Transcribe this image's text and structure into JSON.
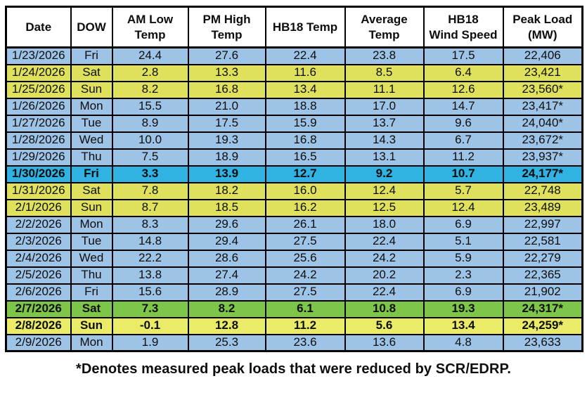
{
  "chart_data": {
    "type": "table",
    "title": "",
    "columns": [
      {
        "key": "date",
        "label": "Date",
        "width": 92
      },
      {
        "key": "dow",
        "label": "DOW",
        "width": 59
      },
      {
        "key": "am_low",
        "label": "AM Low\nTemp",
        "width": 108
      },
      {
        "key": "pm_high",
        "label": "PM High\nTemp",
        "width": 110
      },
      {
        "key": "hb18_temp",
        "label": "HB18 Temp",
        "width": 113
      },
      {
        "key": "avg_temp",
        "label": "Average\nTemp",
        "width": 112
      },
      {
        "key": "hb18_wind",
        "label": "HB18\nWind Speed",
        "width": 113
      },
      {
        "key": "peak_load",
        "label": "Peak Load\n(MW)",
        "width": 113
      }
    ],
    "rows": [
      {
        "date": "1/23/2026",
        "dow": "Fri",
        "am_low": "24.4",
        "pm_high": "27.6",
        "hb18_temp": "22.4",
        "avg_temp": "23.8",
        "hb18_wind": "17.5",
        "peak_load": "22,406",
        "style": "weekday",
        "bold": false
      },
      {
        "date": "1/24/2026",
        "dow": "Sat",
        "am_low": "2.8",
        "pm_high": "13.3",
        "hb18_temp": "11.6",
        "avg_temp": "8.5",
        "hb18_wind": "6.4",
        "peak_load": "23,421",
        "style": "weekend",
        "bold": false
      },
      {
        "date": "1/25/2026",
        "dow": "Sun",
        "am_low": "8.2",
        "pm_high": "16.8",
        "hb18_temp": "13.4",
        "avg_temp": "11.1",
        "hb18_wind": "12.6",
        "peak_load": "23,560*",
        "style": "weekend",
        "bold": false
      },
      {
        "date": "1/26/2026",
        "dow": "Mon",
        "am_low": "15.5",
        "pm_high": "21.0",
        "hb18_temp": "18.8",
        "avg_temp": "17.0",
        "hb18_wind": "14.7",
        "peak_load": "23,417*",
        "style": "weekday",
        "bold": false
      },
      {
        "date": "1/27/2026",
        "dow": "Tue",
        "am_low": "8.9",
        "pm_high": "17.5",
        "hb18_temp": "15.9",
        "avg_temp": "13.7",
        "hb18_wind": "9.6",
        "peak_load": "24,040*",
        "style": "weekday",
        "bold": false
      },
      {
        "date": "1/28/2026",
        "dow": "Wed",
        "am_low": "10.0",
        "pm_high": "19.3",
        "hb18_temp": "16.8",
        "avg_temp": "14.3",
        "hb18_wind": "6.7",
        "peak_load": "23,672*",
        "style": "weekday",
        "bold": false
      },
      {
        "date": "1/29/2026",
        "dow": "Thu",
        "am_low": "7.5",
        "pm_high": "18.9",
        "hb18_temp": "16.5",
        "avg_temp": "13.1",
        "hb18_wind": "11.2",
        "peak_load": "23,937*",
        "style": "weekday",
        "bold": false
      },
      {
        "date": "1/30/2026",
        "dow": "Fri",
        "am_low": "3.3",
        "pm_high": "13.9",
        "hb18_temp": "12.7",
        "avg_temp": "9.2",
        "hb18_wind": "10.7",
        "peak_load": "24,177*",
        "style": "peak_cyan",
        "bold": true
      },
      {
        "date": "1/31/2026",
        "dow": "Sat",
        "am_low": "7.8",
        "pm_high": "18.2",
        "hb18_temp": "16.0",
        "avg_temp": "12.4",
        "hb18_wind": "5.7",
        "peak_load": "22,748",
        "style": "weekend",
        "bold": false
      },
      {
        "date": "2/1/2026",
        "dow": "Sun",
        "am_low": "8.7",
        "pm_high": "18.5",
        "hb18_temp": "16.2",
        "avg_temp": "12.5",
        "hb18_wind": "12.4",
        "peak_load": "23,489",
        "style": "weekend",
        "bold": false
      },
      {
        "date": "2/2/2026",
        "dow": "Mon",
        "am_low": "8.3",
        "pm_high": "29.6",
        "hb18_temp": "26.1",
        "avg_temp": "18.0",
        "hb18_wind": "6.9",
        "peak_load": "22,997",
        "style": "weekday",
        "bold": false
      },
      {
        "date": "2/3/2026",
        "dow": "Tue",
        "am_low": "14.8",
        "pm_high": "29.4",
        "hb18_temp": "27.5",
        "avg_temp": "22.4",
        "hb18_wind": "5.1",
        "peak_load": "22,581",
        "style": "weekday",
        "bold": false
      },
      {
        "date": "2/4/2026",
        "dow": "Wed",
        "am_low": "22.2",
        "pm_high": "28.6",
        "hb18_temp": "25.6",
        "avg_temp": "24.2",
        "hb18_wind": "5.9",
        "peak_load": "22,279",
        "style": "weekday",
        "bold": false
      },
      {
        "date": "2/5/2026",
        "dow": "Thu",
        "am_low": "13.8",
        "pm_high": "27.4",
        "hb18_temp": "24.2",
        "avg_temp": "20.2",
        "hb18_wind": "2.3",
        "peak_load": "22,365",
        "style": "weekday",
        "bold": false
      },
      {
        "date": "2/6/2026",
        "dow": "Fri",
        "am_low": "15.6",
        "pm_high": "28.9",
        "hb18_temp": "27.5",
        "avg_temp": "22.4",
        "hb18_wind": "6.9",
        "peak_load": "21,902",
        "style": "weekday",
        "bold": false
      },
      {
        "date": "2/7/2026",
        "dow": "Sat",
        "am_low": "7.3",
        "pm_high": "8.2",
        "hb18_temp": "6.1",
        "avg_temp": "10.8",
        "hb18_wind": "19.3",
        "peak_load": "24,317*",
        "style": "peak_green",
        "bold": true
      },
      {
        "date": "2/8/2026",
        "dow": "Sun",
        "am_low": "-0.1",
        "pm_high": "12.8",
        "hb18_temp": "11.2",
        "avg_temp": "5.6",
        "hb18_wind": "13.4",
        "peak_load": "24,259*",
        "style": "peak_yellow",
        "bold": true
      },
      {
        "date": "2/9/2026",
        "dow": "Mon",
        "am_low": "1.9",
        "pm_high": "25.3",
        "hb18_temp": "23.6",
        "avg_temp": "13.6",
        "hb18_wind": "4.8",
        "peak_load": "23,633",
        "style": "weekday",
        "bold": false
      }
    ],
    "row_styles": {
      "weekday": "#9DC3E6",
      "weekend": "#DFE15C",
      "peak_cyan": "#30B2E2",
      "peak_green": "#7DC64A",
      "peak_yellow": "#EAEC68"
    },
    "layout": {
      "border_color": "#000000",
      "header_background": "#FFFFFF",
      "text_color": "#0D0D0D"
    }
  },
  "footnote": "*Denotes measured peak loads that were reduced by SCR/EDRP."
}
